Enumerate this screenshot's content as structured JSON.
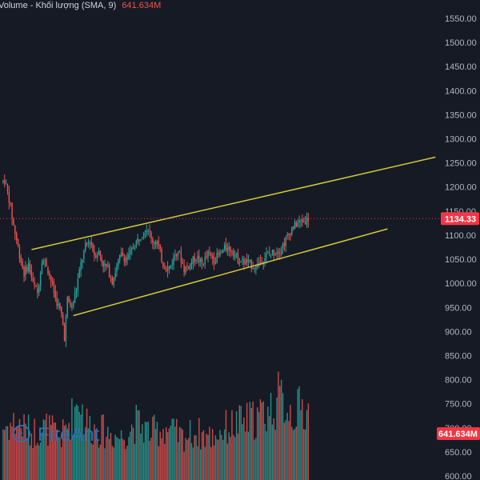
{
  "header": {
    "volume_label": "Volume - Khối lượng (SMA, 9)",
    "volume_value": "641.634M"
  },
  "watermark": "FireAnt",
  "colors": {
    "background": "#161a25",
    "up": "#26a69a",
    "down": "#ef5350",
    "channel": "#d4c83a",
    "badge": "#f23645",
    "axis_text": "#b2b5be"
  },
  "chart_data": {
    "type": "candlestick",
    "y_axis_ticks": [
      "1550.00",
      "1500.00",
      "1450.00",
      "1400.00",
      "1350.00",
      "1300.00",
      "1250.00",
      "1200.00",
      "1150.00",
      "1100.00",
      "1050.00",
      "1000.00",
      "950.00",
      "900.00",
      "850.00",
      "800.00",
      "750.00",
      "700.00",
      "650.00",
      "600.00"
    ],
    "ylim": [
      595,
      1570
    ],
    "last_price": "1134.33",
    "last_price_value": 1134.33,
    "volume_badge": "641.634M",
    "grid": false,
    "price_anchors": [
      [
        0,
        1210
      ],
      [
        2,
        1215
      ],
      [
        5,
        1175
      ],
      [
        8,
        1120
      ],
      [
        12,
        1060
      ],
      [
        15,
        1020
      ],
      [
        18,
        1040
      ],
      [
        21,
        1000
      ],
      [
        24,
        980
      ],
      [
        27,
        1050
      ],
      [
        30,
        1040
      ],
      [
        33,
        1005
      ],
      [
        36,
        970
      ],
      [
        40,
        935
      ],
      [
        42,
        890
      ],
      [
        44,
        965
      ],
      [
        47,
        950
      ],
      [
        50,
        990
      ],
      [
        53,
        1040
      ],
      [
        56,
        1075
      ],
      [
        59,
        1090
      ],
      [
        62,
        1060
      ],
      [
        65,
        1065
      ],
      [
        68,
        1040
      ],
      [
        71,
        1030
      ],
      [
        74,
        1005
      ],
      [
        77,
        1035
      ],
      [
        80,
        1060
      ],
      [
        84,
        1050
      ],
      [
        88,
        1075
      ],
      [
        92,
        1095
      ],
      [
        95,
        1110
      ],
      [
        98,
        1115
      ],
      [
        100,
        1090
      ],
      [
        104,
        1085
      ],
      [
        108,
        1040
      ],
      [
        112,
        1030
      ],
      [
        116,
        1060
      ],
      [
        118,
        1070
      ],
      [
        122,
        1030
      ],
      [
        126,
        1040
      ],
      [
        130,
        1055
      ],
      [
        134,
        1040
      ],
      [
        138,
        1060
      ],
      [
        142,
        1050
      ],
      [
        146,
        1060
      ],
      [
        150,
        1075
      ],
      [
        154,
        1070
      ],
      [
        158,
        1050
      ],
      [
        162,
        1045
      ],
      [
        166,
        1040
      ],
      [
        170,
        1035
      ],
      [
        174,
        1050
      ],
      [
        178,
        1060
      ],
      [
        182,
        1065
      ],
      [
        186,
        1070
      ],
      [
        190,
        1090
      ],
      [
        194,
        1115
      ],
      [
        198,
        1125
      ],
      [
        202,
        1130
      ],
      [
        205,
        1134.33
      ]
    ],
    "volume_anchors": [
      [
        0,
        0.55
      ],
      [
        10,
        0.6
      ],
      [
        20,
        0.5
      ],
      [
        30,
        0.55
      ],
      [
        40,
        0.45
      ],
      [
        48,
        0.7
      ],
      [
        52,
        0.9
      ],
      [
        55,
        0.65
      ],
      [
        60,
        0.55
      ],
      [
        70,
        0.5
      ],
      [
        80,
        0.45
      ],
      [
        90,
        0.6
      ],
      [
        95,
        0.55
      ],
      [
        100,
        0.5
      ],
      [
        110,
        0.55
      ],
      [
        120,
        0.45
      ],
      [
        130,
        0.5
      ],
      [
        140,
        0.45
      ],
      [
        150,
        0.55
      ],
      [
        160,
        0.6
      ],
      [
        170,
        0.65
      ],
      [
        180,
        0.75
      ],
      [
        185,
        0.85
      ],
      [
        190,
        0.8
      ],
      [
        195,
        0.7
      ],
      [
        200,
        0.75
      ],
      [
        205,
        0.72
      ]
    ],
    "channel_upper": {
      "from": [
        20,
        1070
      ],
      "to": [
        290,
        1262
      ]
    },
    "channel_lower": {
      "from": [
        48,
        933
      ],
      "to": [
        258,
        1113
      ]
    }
  }
}
